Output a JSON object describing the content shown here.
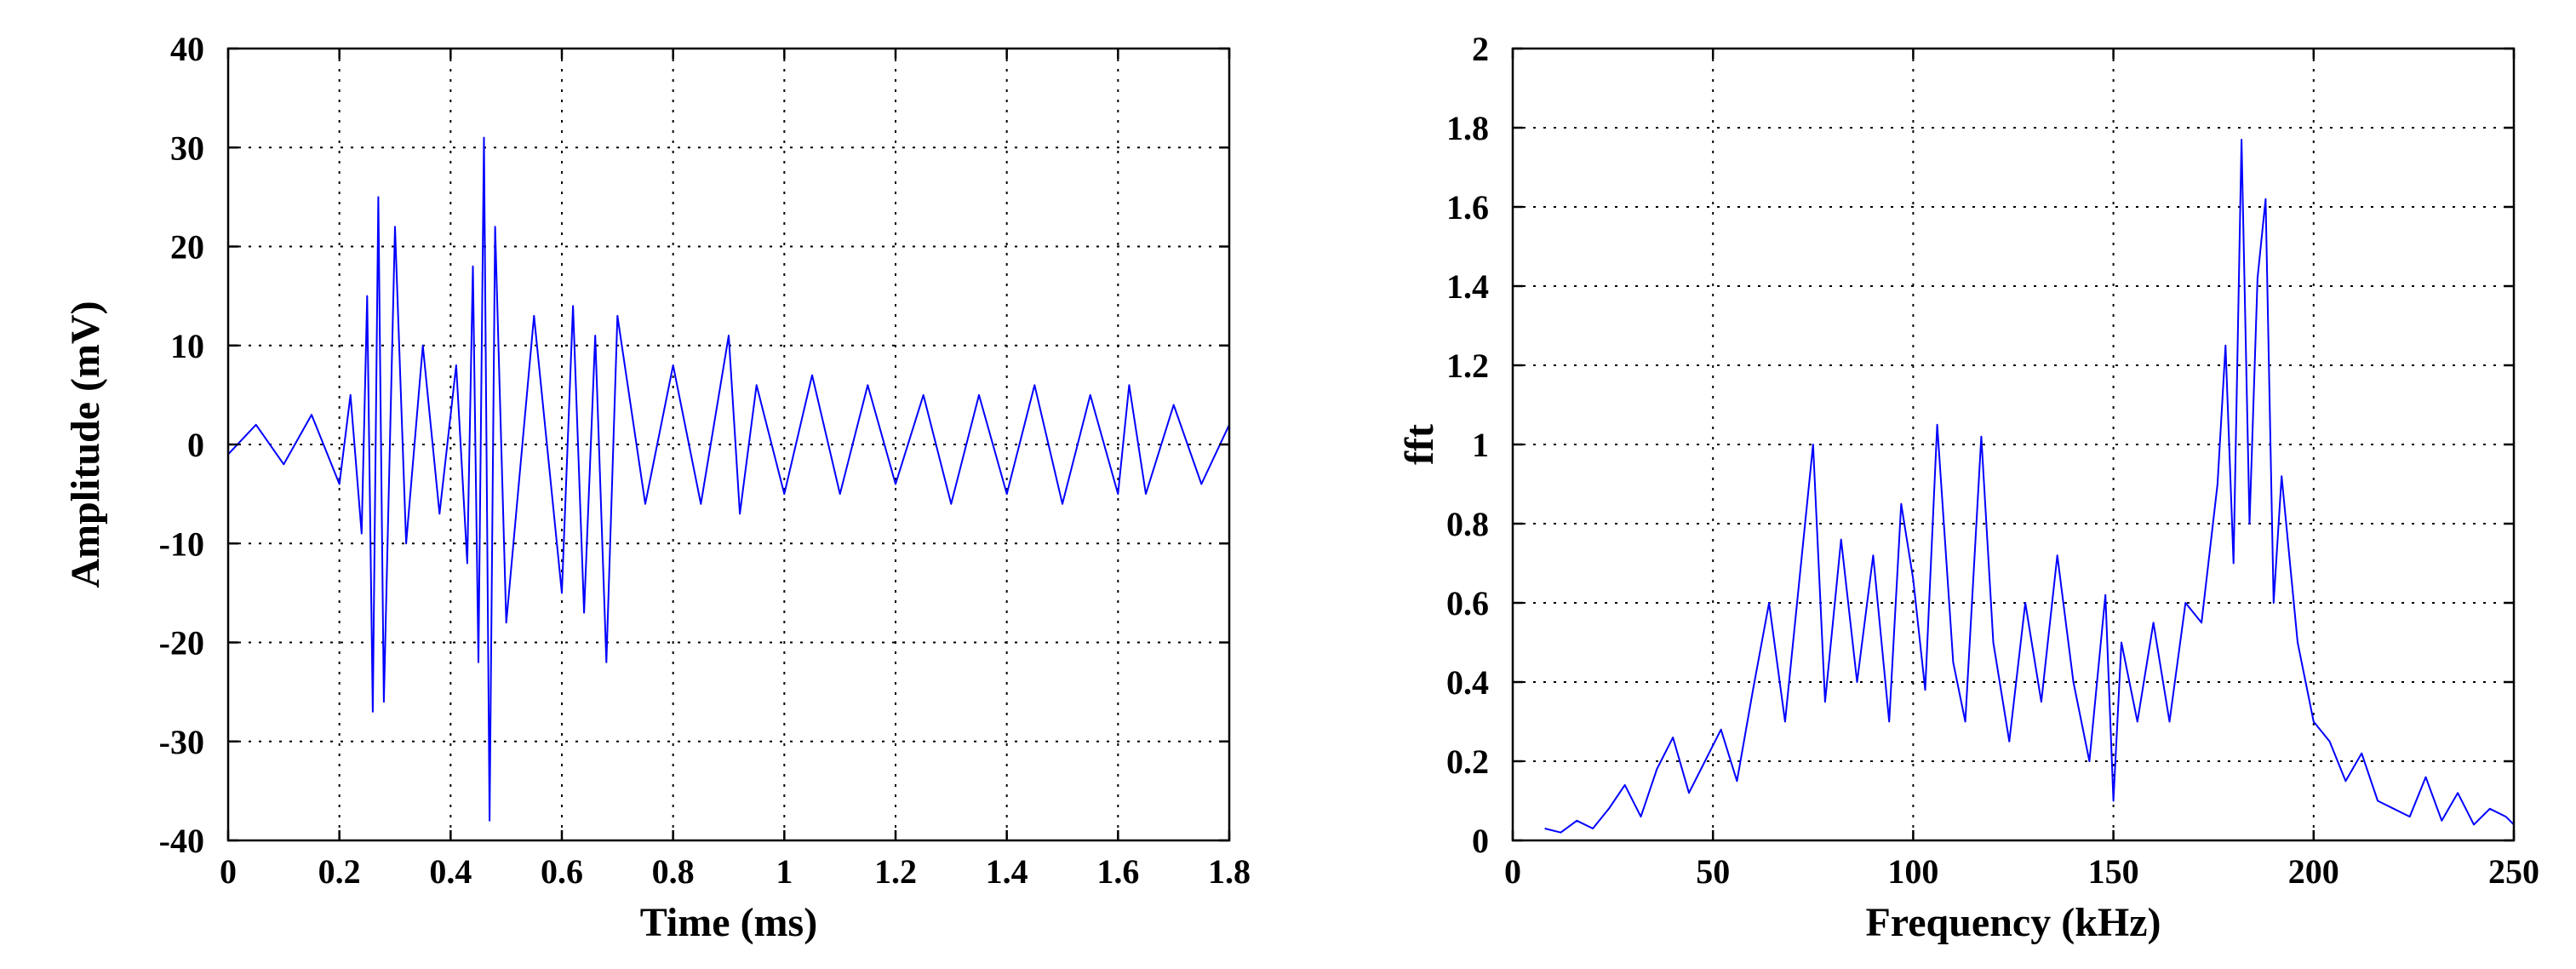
{
  "chart_data": [
    {
      "type": "line",
      "title": "",
      "xlabel": "Time (ms)",
      "ylabel": "Amplitude (mV)",
      "xlim": [
        0,
        1.8
      ],
      "ylim": [
        -40,
        40
      ],
      "xticks": [
        0,
        0.2,
        0.4,
        0.6,
        0.8,
        1,
        1.2,
        1.4,
        1.6,
        1.8
      ],
      "xtick_labels": [
        "0",
        "0.2",
        "0.4",
        "0.6",
        "0.8",
        "1",
        "1.2",
        "1.4",
        "1.6",
        "1.8"
      ],
      "yticks": [
        -40,
        -30,
        -20,
        -10,
        0,
        10,
        20,
        30,
        40
      ],
      "ytick_labels": [
        "-40",
        "-30",
        "-20",
        "-10",
        "0",
        "10",
        "20",
        "30",
        "40"
      ],
      "grid": true,
      "color": "#0000ff",
      "series": [
        {
          "x": [
            0,
            0.05,
            0.1,
            0.15,
            0.2,
            0.22,
            0.24,
            0.25,
            0.26,
            0.27,
            0.28,
            0.3,
            0.32,
            0.35,
            0.38,
            0.41,
            0.43,
            0.44,
            0.45,
            0.46,
            0.47,
            0.48,
            0.5,
            0.55,
            0.6,
            0.62,
            0.64,
            0.66,
            0.68,
            0.7,
            0.75,
            0.8,
            0.85,
            0.9,
            0.92,
            0.95,
            1,
            1.05,
            1.1,
            1.15,
            1.2,
            1.25,
            1.3,
            1.35,
            1.4,
            1.45,
            1.5,
            1.55,
            1.6,
            1.62,
            1.65,
            1.7,
            1.75,
            1.8
          ],
          "y": [
            -1,
            2,
            -2,
            3,
            -4,
            5,
            -9,
            15,
            -27,
            25,
            -26,
            22,
            -10,
            10,
            -7,
            8,
            -12,
            18,
            -22,
            31,
            -38,
            22,
            -18,
            13,
            -15,
            14,
            -17,
            11,
            -22,
            13,
            -6,
            8,
            -6,
            11,
            -7,
            6,
            -5,
            7,
            -5,
            6,
            -4,
            5,
            -6,
            5,
            -5,
            6,
            -6,
            5,
            -5,
            6,
            -5,
            4,
            -4,
            2
          ]
        }
      ]
    },
    {
      "type": "line",
      "title": "",
      "xlabel": "Frequency (kHz)",
      "ylabel": "fft",
      "xlim": [
        0,
        250
      ],
      "ylim": [
        0,
        2
      ],
      "xticks": [
        0,
        50,
        100,
        150,
        200,
        250
      ],
      "xtick_labels": [
        "0",
        "50",
        "100",
        "150",
        "200",
        "250"
      ],
      "yticks": [
        0,
        0.2,
        0.4,
        0.6,
        0.8,
        1,
        1.2,
        1.4,
        1.6,
        1.8,
        2
      ],
      "ytick_labels": [
        "0",
        "0.2",
        "0.4",
        "0.6",
        "0.8",
        "1",
        "1.2",
        "1.4",
        "1.6",
        "1.8",
        "2"
      ],
      "grid": true,
      "color": "#0000ff",
      "series": [
        {
          "x": [
            8,
            12,
            16,
            20,
            24,
            28,
            32,
            36,
            40,
            44,
            48,
            52,
            56,
            60,
            64,
            68,
            72,
            75,
            78,
            82,
            86,
            90,
            94,
            97,
            100,
            103,
            106,
            110,
            113,
            117,
            120,
            124,
            128,
            132,
            136,
            140,
            144,
            148,
            150,
            152,
            156,
            160,
            164,
            168,
            172,
            176,
            178,
            180,
            182,
            184,
            186,
            188,
            190,
            192,
            196,
            200,
            204,
            208,
            212,
            216,
            220,
            224,
            228,
            232,
            236,
            240,
            244,
            248,
            250
          ],
          "y": [
            0.03,
            0.02,
            0.05,
            0.03,
            0.08,
            0.14,
            0.06,
            0.18,
            0.26,
            0.12,
            0.2,
            0.28,
            0.15,
            0.38,
            0.6,
            0.3,
            0.7,
            1.0,
            0.35,
            0.76,
            0.4,
            0.72,
            0.3,
            0.85,
            0.66,
            0.38,
            1.05,
            0.45,
            0.3,
            1.02,
            0.5,
            0.25,
            0.6,
            0.35,
            0.72,
            0.4,
            0.2,
            0.62,
            0.1,
            0.5,
            0.3,
            0.55,
            0.3,
            0.6,
            0.55,
            0.9,
            1.25,
            0.7,
            1.77,
            0.8,
            1.42,
            1.62,
            0.6,
            0.92,
            0.5,
            0.3,
            0.25,
            0.15,
            0.22,
            0.1,
            0.08,
            0.06,
            0.16,
            0.05,
            0.12,
            0.04,
            0.08,
            0.06,
            0.04
          ]
        }
      ]
    }
  ]
}
